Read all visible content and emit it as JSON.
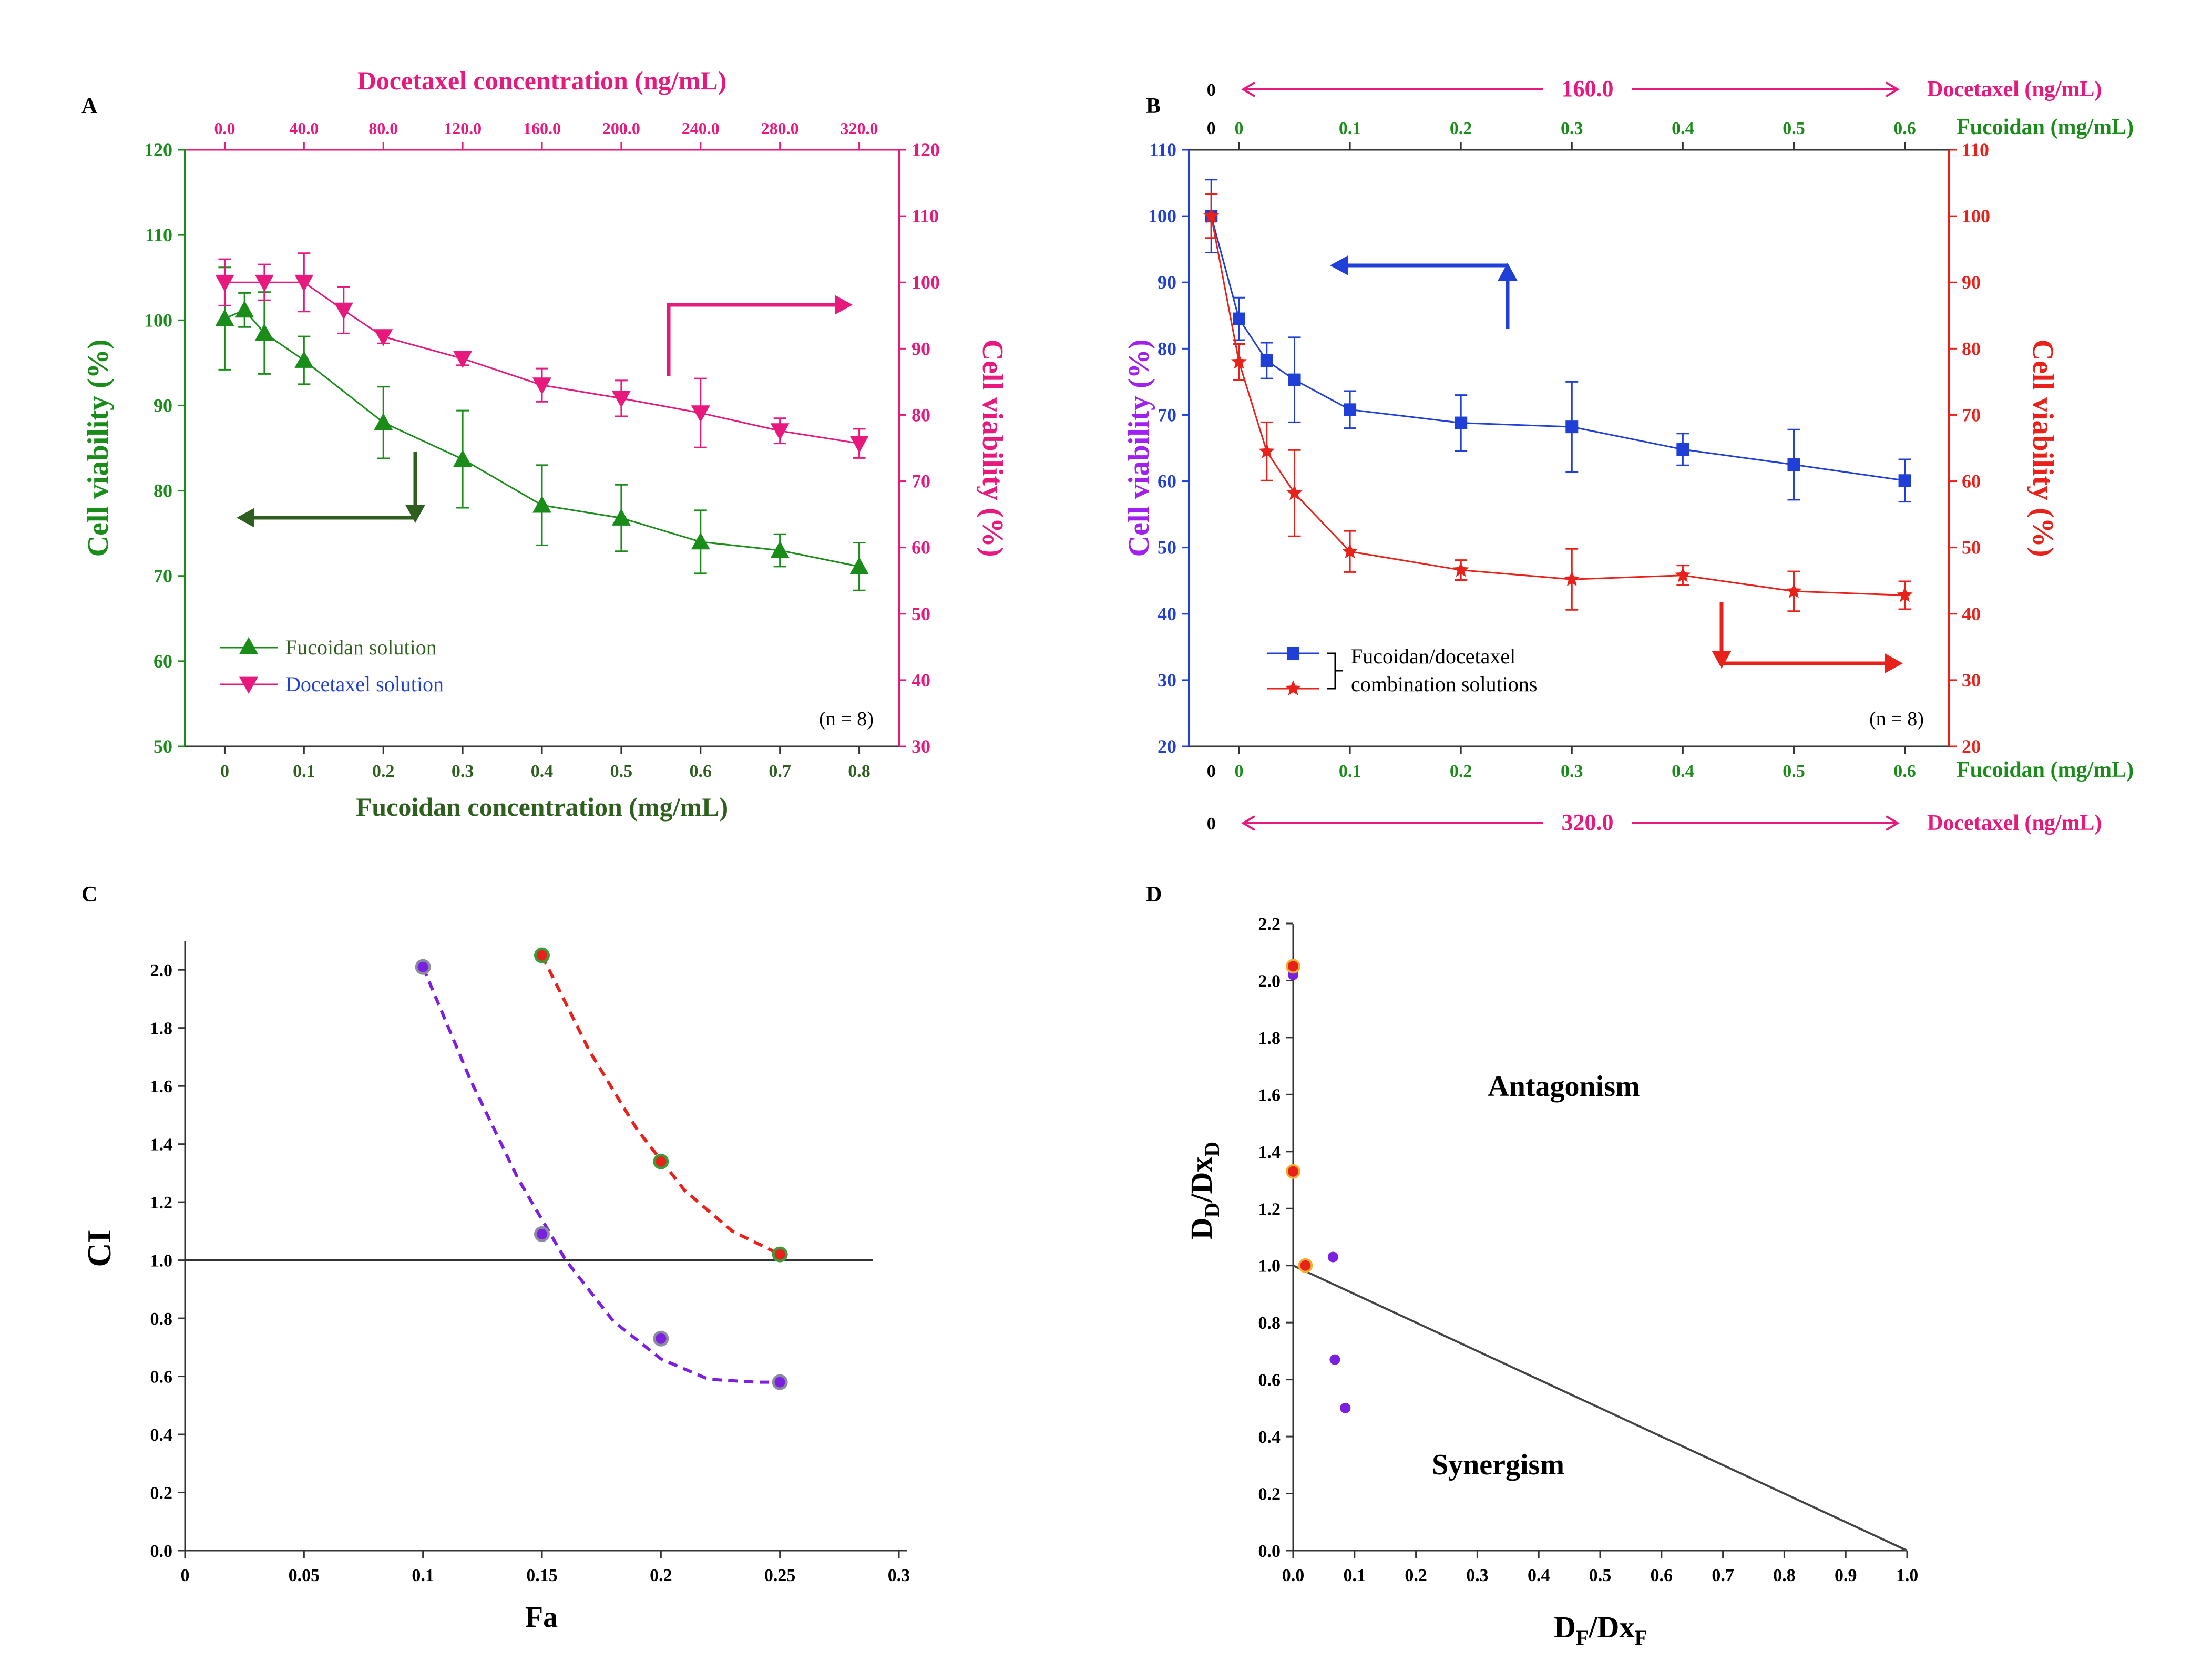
{
  "figure": {
    "panel_labels": [
      "A",
      "B",
      "C",
      "D"
    ]
  },
  "chart_data": [
    {
      "panel": "A",
      "type": "line",
      "title": "",
      "x_bottom": {
        "label": "Fucoidan concentration (mg/mL)",
        "ticks": [
          0,
          0.1,
          0.2,
          0.3,
          0.4,
          0.5,
          0.6,
          0.7,
          0.8
        ],
        "tick_labels": [
          "0",
          "0.1",
          "0.2",
          "0.3",
          "0.4",
          "0.5",
          "0.6",
          "0.7",
          "0.8"
        ],
        "range": [
          -0.05,
          0.85
        ]
      },
      "x_top": {
        "label": "Docetaxel concentration (ng/mL)",
        "ticks": [
          0,
          40,
          80,
          120,
          160,
          200,
          240,
          280,
          320
        ],
        "tick_labels": [
          "0.0",
          "40.0",
          "80.0",
          "120.0",
          "160.0",
          "200.0",
          "240.0",
          "280.0",
          "320.0"
        ],
        "range": [
          -20,
          340
        ]
      },
      "y_left": {
        "label": "Cell viability (%)",
        "ticks": [
          50,
          60,
          70,
          80,
          90,
          100,
          110,
          120
        ],
        "range": [
          50,
          120
        ]
      },
      "y_right": {
        "label": "Cell viability (%)",
        "ticks": [
          30,
          40,
          50,
          60,
          70,
          80,
          90,
          100,
          110,
          120
        ],
        "range": [
          30,
          120
        ]
      },
      "series": [
        {
          "name": "Fucoidan solution",
          "marker": "triangle-up",
          "color": "#1a8c1a",
          "axis": "left",
          "x": [
            0,
            0.025,
            0.05,
            0.1,
            0.2,
            0.3,
            0.4,
            0.5,
            0.6,
            0.7,
            0.8
          ],
          "y": [
            100.2,
            101.2,
            98.5,
            95.3,
            88.0,
            83.7,
            78.3,
            76.8,
            74.0,
            73.0,
            71.1
          ],
          "err": [
            6.0,
            2.0,
            4.8,
            2.8,
            4.2,
            5.7,
            4.7,
            3.9,
            3.7,
            1.9,
            2.8
          ]
        },
        {
          "name": "Docetaxel solution",
          "marker": "triangle-down",
          "color": "#e8197c",
          "axis": "right",
          "x": [
            0,
            20,
            40,
            60,
            80,
            120,
            160,
            200,
            240,
            280,
            320
          ],
          "y": [
            100.0,
            100.0,
            100.0,
            95.8,
            91.8,
            88.5,
            84.5,
            82.5,
            80.3,
            77.6,
            75.7
          ],
          "err": [
            3.5,
            2.7,
            4.4,
            3.5,
            1.0,
            1.0,
            2.5,
            2.7,
            5.2,
            1.9,
            2.2
          ]
        }
      ],
      "annotations": [
        "(n = 8)"
      ]
    },
    {
      "panel": "B",
      "type": "line",
      "title": "",
      "x_bottom": {
        "label": "Fucoidan (mg/mL)",
        "ticks": [
          0,
          0.1,
          0.2,
          0.3,
          0.4,
          0.5,
          0.6
        ],
        "tick_labels": [
          "0",
          "0.1",
          "0.2",
          "0.3",
          "0.4",
          "0.5",
          "0.6"
        ],
        "extra_tick_label": "0",
        "range": [
          -0.045,
          0.64
        ]
      },
      "x_top": {
        "label": "Fucoidan (mg/mL)",
        "ticks": [
          0,
          0.1,
          0.2,
          0.3,
          0.4,
          0.5,
          0.6
        ],
        "tick_labels": [
          "0",
          "0.1",
          "0.2",
          "0.3",
          "0.4",
          "0.5",
          "0.6"
        ],
        "extra_tick_label": "0"
      },
      "docetaxel_top": {
        "zero": "0",
        "value": "160.0",
        "label": "Docetaxel (ng/mL)"
      },
      "docetaxel_bottom": {
        "zero": "0",
        "value": "320.0",
        "label": "Docetaxel (ng/mL)"
      },
      "y_left": {
        "label": "Cell viability (%)",
        "ticks": [
          20,
          30,
          40,
          50,
          60,
          70,
          80,
          90,
          100,
          110
        ],
        "range": [
          20,
          110
        ]
      },
      "y_right": {
        "label": "Cell viability (%)",
        "ticks": [
          20,
          30,
          40,
          50,
          60,
          70,
          80,
          90,
          100,
          110
        ],
        "range": [
          20,
          110
        ]
      },
      "series": [
        {
          "name": "Fucoidan/docetaxel combination solutions (160.0 ng/mL)",
          "marker": "square",
          "color": "#1f3fd6",
          "x": [
            -0.025,
            0,
            0.025,
            0.05,
            0.1,
            0.2,
            0.3,
            0.4,
            0.5,
            0.6
          ],
          "y": [
            100.0,
            84.5,
            78.2,
            75.3,
            70.8,
            68.8,
            68.2,
            64.8,
            62.5,
            60.1
          ],
          "err": [
            5.5,
            3.2,
            2.7,
            6.4,
            2.8,
            4.2,
            6.8,
            2.4,
            5.3,
            3.2
          ]
        },
        {
          "name": "Fucoidan/docetaxel combination solutions (320.0 ng/mL)",
          "marker": "star",
          "color": "#e8221a",
          "x": [
            -0.025,
            0,
            0.025,
            0.05,
            0.1,
            0.2,
            0.3,
            0.4,
            0.5,
            0.6
          ],
          "y": [
            100.0,
            78.0,
            64.5,
            58.2,
            49.4,
            46.6,
            45.2,
            45.8,
            43.4,
            42.8
          ],
          "err": [
            3.3,
            2.7,
            4.4,
            6.5,
            3.1,
            1.5,
            4.6,
            1.5,
            3.0,
            2.1
          ]
        }
      ],
      "legend_text": [
        "Fucoidan/docetaxel",
        "combination solutions"
      ],
      "annotations": [
        "(n = 8)"
      ]
    },
    {
      "panel": "C",
      "type": "scatter",
      "title": "",
      "xlabel": "Fa",
      "ylabel": "CI",
      "x_ticks": [
        0,
        0.05,
        0.1,
        0.15,
        0.2,
        0.25,
        0.3
      ],
      "x_tick_labels": [
        "0",
        "0.05",
        "0.1",
        "0.15",
        "0.2",
        "0.25",
        "0.3"
      ],
      "y_ticks": [
        0,
        0.2,
        0.4,
        0.6,
        0.8,
        1.0,
        1.2,
        1.4,
        1.6,
        1.8,
        2.0
      ],
      "y_tick_labels": [
        "0.0",
        "0.2",
        "0.4",
        "0.6",
        "0.8",
        "1.0",
        "1.2",
        "1.4",
        "1.6",
        "1.8",
        "2.0"
      ],
      "xlim": [
        0,
        0.3
      ],
      "ylim": [
        0,
        2.1
      ],
      "reference_line": {
        "y": 1.0
      },
      "series": [
        {
          "name": "purple",
          "color": "#7b1fe0",
          "x": [
            0.1,
            0.15,
            0.2,
            0.25
          ],
          "y": [
            2.01,
            1.09,
            0.73,
            0.58
          ],
          "fit": [
            [
              0.1,
              2.01
            ],
            [
              0.12,
              1.62
            ],
            [
              0.14,
              1.28
            ],
            [
              0.16,
              1.0
            ],
            [
              0.18,
              0.79
            ],
            [
              0.2,
              0.66
            ],
            [
              0.22,
              0.59
            ],
            [
              0.24,
              0.58
            ],
            [
              0.25,
              0.58
            ]
          ]
        },
        {
          "name": "red",
          "color": "#e8221a",
          "x": [
            0.15,
            0.2,
            0.25
          ],
          "y": [
            2.05,
            1.34,
            1.02
          ],
          "fit": [
            [
              0.15,
              2.05
            ],
            [
              0.17,
              1.72
            ],
            [
              0.19,
              1.45
            ],
            [
              0.21,
              1.24
            ],
            [
              0.23,
              1.1
            ],
            [
              0.25,
              1.02
            ]
          ]
        }
      ]
    },
    {
      "panel": "D",
      "type": "scatter",
      "title": "",
      "xlabel": "DF/DxF",
      "ylabel": "DD/DxD",
      "x_ticks": [
        0,
        0.1,
        0.2,
        0.3,
        0.4,
        0.5,
        0.6,
        0.7,
        0.8,
        0.9,
        1.0
      ],
      "x_tick_labels": [
        "0.0",
        "0.1",
        "0.2",
        "0.3",
        "0.4",
        "0.5",
        "0.6",
        "0.7",
        "0.8",
        "0.9",
        "1.0"
      ],
      "y_ticks": [
        0,
        0.2,
        0.4,
        0.6,
        0.8,
        1.0,
        1.2,
        1.4,
        1.6,
        1.8,
        2.0,
        2.2
      ],
      "y_tick_labels": [
        "0.0",
        "0.2",
        "0.4",
        "0.6",
        "0.8",
        "1.0",
        "1.2",
        "1.4",
        "1.6",
        "1.8",
        "2.0",
        "2.2"
      ],
      "xlim": [
        0,
        1.0
      ],
      "ylim": [
        0,
        2.2
      ],
      "additivity_line": [
        [
          0,
          1.0
        ],
        [
          1.0,
          0
        ]
      ],
      "regions": [
        "Antagonism",
        "Synergism"
      ],
      "series": [
        {
          "name": "purple",
          "color": "#7b1fe0",
          "x": [
            0.0,
            0.065,
            0.068,
            0.085
          ],
          "y": [
            2.02,
            1.03,
            0.67,
            0.5
          ]
        },
        {
          "name": "red",
          "color": "#e8221a",
          "x": [
            0.0,
            0.0,
            0.02
          ],
          "y": [
            2.05,
            1.33,
            1.0
          ]
        }
      ]
    }
  ]
}
